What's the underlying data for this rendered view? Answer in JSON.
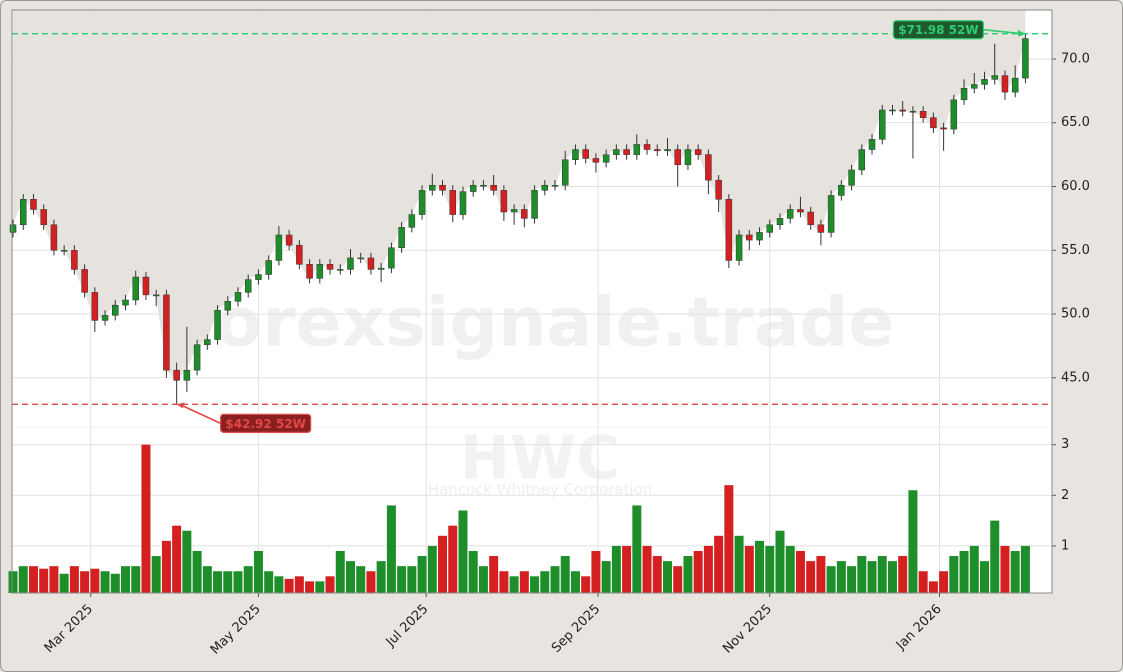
{
  "chart_data": {
    "type": "candlestick",
    "watermark": "forexsignale.trade",
    "ticker": "HWC",
    "company": "Hancock Whitney Corporation",
    "up_color": "#1e8e2a",
    "down_color": "#d42020",
    "shade_color": "#e6e3de",
    "grid": true,
    "categories": [
      null,
      null,
      null,
      null,
      null,
      null,
      null,
      null,
      null,
      null,
      null,
      null,
      null,
      null,
      null,
      null,
      null,
      null,
      null,
      null,
      null,
      null,
      null,
      null,
      null,
      null,
      null,
      null,
      null,
      null,
      null,
      null,
      null,
      null,
      null,
      null,
      null,
      null,
      null,
      null,
      null,
      null,
      null,
      null,
      null,
      null,
      null,
      null,
      null,
      null,
      null,
      null,
      null,
      null,
      null,
      null,
      null,
      null,
      null,
      null,
      null,
      null,
      null,
      null,
      null,
      null,
      null,
      null,
      null,
      null,
      null,
      null,
      null,
      null,
      null,
      null,
      null,
      null,
      null,
      null,
      null,
      null,
      null,
      null,
      null,
      null,
      null,
      null,
      null,
      null,
      null,
      null,
      null,
      null,
      null,
      null,
      null,
      null,
      null,
      null
    ],
    "open": [
      56.4,
      57.0,
      59.0,
      58.2,
      57.0,
      55.0,
      55.0,
      53.5,
      51.7,
      49.5,
      49.9,
      50.7,
      51.1,
      52.9,
      51.5,
      51.5,
      45.6,
      44.8,
      45.6,
      47.6,
      48.0,
      50.3,
      51.0,
      51.7,
      52.7,
      53.1,
      54.2,
      56.2,
      55.4,
      53.9,
      52.8,
      53.9,
      53.5,
      53.5,
      54.4,
      54.4,
      53.5,
      53.6,
      55.2,
      56.8,
      57.8,
      59.7,
      60.1,
      59.7,
      57.8,
      59.6,
      60.1,
      60.1,
      59.7,
      58.0,
      58.2,
      57.5,
      59.7,
      60.1,
      60.1,
      62.1,
      62.9,
      62.2,
      61.9,
      62.5,
      62.9,
      62.5,
      63.3,
      62.9,
      62.8,
      62.9,
      61.7,
      62.9,
      62.5,
      60.5,
      59.0,
      54.2,
      56.2,
      55.8,
      56.4,
      57.0,
      57.5,
      58.2,
      58.0,
      57.0,
      56.4,
      59.3,
      60.1,
      61.3,
      62.9,
      63.7,
      66.0,
      66.0,
      65.9,
      65.9,
      65.4,
      64.6,
      64.5,
      66.8,
      67.7,
      68.0,
      68.4,
      68.7,
      67.4,
      68.5
    ],
    "high": [
      57.4,
      59.4,
      59.4,
      58.6,
      57.4,
      55.4,
      55.4,
      53.9,
      52.1,
      50.3,
      51.1,
      51.5,
      53.4,
      53.3,
      51.9,
      51.9,
      46.2,
      49.0,
      48.0,
      48.4,
      50.7,
      51.4,
      52.1,
      53.1,
      53.5,
      54.6,
      56.9,
      56.6,
      55.8,
      54.3,
      54.3,
      54.3,
      53.9,
      55.1,
      54.8,
      54.8,
      54.0,
      55.6,
      57.2,
      58.2,
      60.1,
      61.0,
      60.5,
      60.1,
      60.0,
      60.5,
      60.5,
      60.9,
      60.1,
      58.6,
      58.6,
      60.1,
      60.5,
      60.5,
      62.8,
      63.3,
      63.3,
      62.6,
      62.9,
      63.3,
      63.3,
      64.1,
      63.7,
      63.3,
      63.8,
      63.3,
      63.3,
      63.3,
      62.9,
      60.9,
      59.4,
      56.6,
      56.6,
      56.8,
      57.4,
      57.9,
      58.6,
      59.2,
      58.4,
      57.4,
      59.7,
      60.5,
      61.7,
      63.3,
      64.1,
      66.4,
      66.4,
      66.7,
      66.3,
      66.3,
      65.8,
      65.0,
      67.2,
      68.4,
      68.9,
      69.0,
      71.2,
      69.1,
      69.5,
      71.98
    ],
    "low": [
      56.0,
      56.6,
      57.8,
      56.6,
      54.6,
      54.6,
      53.1,
      51.3,
      48.6,
      49.1,
      49.5,
      50.3,
      50.7,
      51.1,
      50.6,
      45.0,
      42.92,
      43.9,
      45.2,
      47.2,
      47.6,
      49.9,
      50.6,
      51.3,
      52.3,
      52.7,
      53.8,
      55.0,
      53.5,
      52.4,
      52.4,
      53.1,
      53.1,
      53.1,
      54.0,
      53.1,
      52.5,
      53.2,
      54.8,
      56.4,
      57.4,
      59.3,
      59.3,
      57.2,
      57.4,
      59.2,
      59.7,
      59.3,
      57.3,
      57.0,
      56.8,
      57.1,
      59.3,
      59.7,
      59.7,
      61.7,
      61.8,
      61.1,
      61.5,
      62.1,
      62.1,
      62.1,
      62.5,
      62.4,
      62.4,
      60.0,
      61.3,
      62.1,
      59.4,
      58.0,
      53.6,
      53.8,
      55.0,
      55.4,
      56.0,
      56.6,
      57.1,
      57.6,
      56.6,
      55.4,
      56.0,
      58.9,
      59.7,
      60.9,
      62.5,
      63.3,
      65.6,
      65.5,
      62.2,
      65.0,
      64.2,
      62.8,
      64.1,
      66.4,
      67.3,
      67.6,
      68.0,
      66.8,
      67.0,
      68.1
    ],
    "close": [
      57.0,
      59.0,
      58.2,
      57.0,
      55.0,
      55.0,
      53.5,
      51.7,
      49.5,
      49.9,
      50.7,
      51.1,
      52.9,
      51.5,
      51.5,
      45.6,
      44.8,
      45.6,
      47.6,
      48.0,
      50.3,
      51.0,
      51.7,
      52.7,
      53.1,
      54.2,
      56.2,
      55.4,
      53.9,
      52.8,
      53.9,
      53.5,
      53.5,
      54.4,
      54.4,
      53.5,
      53.6,
      55.2,
      56.8,
      57.8,
      59.7,
      60.1,
      59.7,
      57.8,
      59.6,
      60.1,
      60.1,
      59.7,
      58.0,
      58.2,
      57.5,
      59.7,
      60.1,
      60.1,
      62.1,
      62.9,
      62.2,
      61.9,
      62.5,
      62.9,
      62.5,
      63.3,
      62.9,
      62.8,
      62.9,
      61.7,
      62.9,
      62.5,
      60.5,
      59.0,
      54.2,
      56.2,
      55.8,
      56.4,
      57.0,
      57.5,
      58.2,
      58.0,
      57.0,
      56.4,
      59.3,
      60.1,
      61.3,
      62.9,
      63.7,
      66.0,
      66.0,
      65.9,
      65.9,
      65.4,
      64.6,
      64.5,
      66.8,
      67.7,
      68.0,
      68.4,
      68.7,
      67.4,
      68.5,
      71.6
    ],
    "volume": [
      0.5,
      0.6,
      0.6,
      0.55,
      0.6,
      0.45,
      0.6,
      0.5,
      0.55,
      0.5,
      0.45,
      0.6,
      0.6,
      3.0,
      0.8,
      1.1,
      1.4,
      1.3,
      0.9,
      0.6,
      0.5,
      0.5,
      0.5,
      0.6,
      0.9,
      0.5,
      0.4,
      0.35,
      0.4,
      0.3,
      0.3,
      0.4,
      0.9,
      0.7,
      0.6,
      0.5,
      0.7,
      1.8,
      0.6,
      0.6,
      0.8,
      1.0,
      1.2,
      1.4,
      1.7,
      0.9,
      0.6,
      0.8,
      0.5,
      0.4,
      0.5,
      0.4,
      0.5,
      0.6,
      0.8,
      0.5,
      0.4,
      0.9,
      0.7,
      1.0,
      1.0,
      1.8,
      1.0,
      0.8,
      0.7,
      0.6,
      0.8,
      0.9,
      1.0,
      1.2,
      2.2,
      1.2,
      1.0,
      1.1,
      1.0,
      1.3,
      1.0,
      0.9,
      0.7,
      0.8,
      0.6,
      0.7,
      0.6,
      0.8,
      0.7,
      0.8,
      0.7,
      0.8,
      2.1,
      0.5,
      0.3,
      0.5,
      0.8,
      0.9,
      1.0,
      0.7,
      1.5,
      1.0,
      0.9,
      1.0
    ],
    "xlim": [
      -0.1,
      101.6
    ],
    "xticks": [
      {
        "value": 7.6,
        "label": "Mar 2025"
      },
      {
        "value": 24.0,
        "label": "May 2025"
      },
      {
        "value": 40.4,
        "label": "Jul 2025"
      },
      {
        "value": 57.2,
        "label": "Sep 2025"
      },
      {
        "value": 74.0,
        "label": "Nov 2025"
      },
      {
        "value": 90.6,
        "label": "Jan 2026"
      }
    ],
    "ylim": [
      41.3,
      73.84
    ],
    "yticks": [
      {
        "value": 45,
        "label": "45.0"
      },
      {
        "value": 50,
        "label": "50.0"
      },
      {
        "value": 55,
        "label": "55.0"
      },
      {
        "value": 60,
        "label": "60.0"
      },
      {
        "value": 65,
        "label": "65.0"
      },
      {
        "value": 70,
        "label": "70.0"
      }
    ],
    "volume_ylim": [
      0.07,
      3.29
    ],
    "volume_yticks": [
      1,
      2,
      3
    ],
    "annotations": [
      {
        "value": 71.98,
        "label": "$71.98 52W",
        "color": "#2ecc71"
      },
      {
        "value": 42.92,
        "label": "$42.92 52W",
        "color": "#e04848"
      }
    ]
  }
}
